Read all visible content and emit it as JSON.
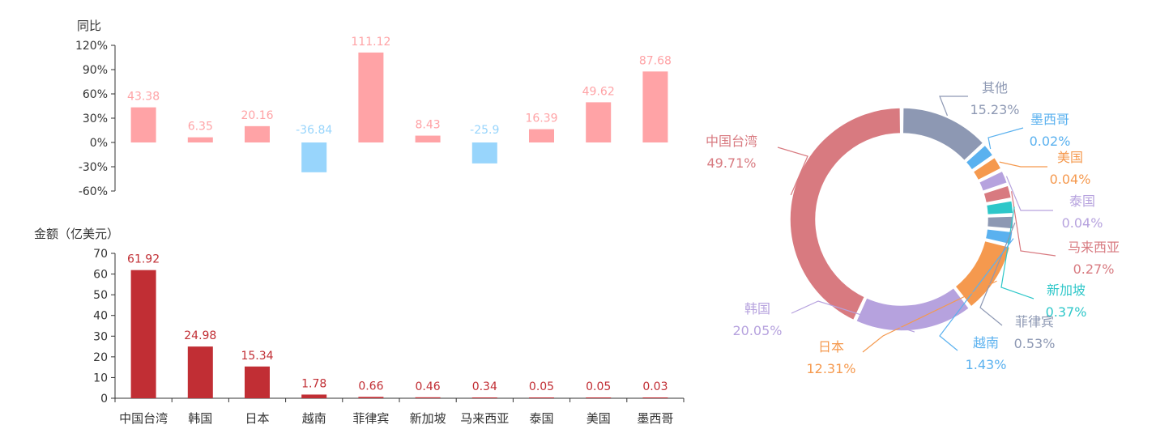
{
  "chart_data": [
    {
      "type": "bar",
      "ylabel": "同比",
      "categories": [
        "中国台湾",
        "韩国",
        "日本",
        "越南",
        "菲律宾",
        "新加坡",
        "马来西亚",
        "泰国",
        "美国",
        "墨西哥"
      ],
      "values": [
        43.38,
        6.35,
        20.16,
        -36.84,
        111.12,
        8.43,
        -25.9,
        16.39,
        49.62,
        87.68
      ],
      "value_labels": [
        "43.38",
        "6.35",
        "20.16",
        "-36.84",
        "111.12",
        "8.43",
        "-25.9",
        "16.39",
        "49.62",
        "87.68"
      ],
      "ylim": [
        -60,
        120
      ],
      "yticks": [
        "120%",
        "90%",
        "60%",
        "30%",
        "0%",
        "-30%",
        "-60%"
      ],
      "colors": {
        "positive": "#ffa3a6",
        "negative": "#98d5fc"
      }
    },
    {
      "type": "bar",
      "ylabel": "金额（亿美元）",
      "categories": [
        "中国台湾",
        "韩国",
        "日本",
        "越南",
        "菲律宾",
        "新加坡",
        "马来西亚",
        "泰国",
        "美国",
        "墨西哥"
      ],
      "values": [
        61.92,
        24.98,
        15.34,
        1.78,
        0.66,
        0.46,
        0.34,
        0.05,
        0.05,
        0.03
      ],
      "value_labels": [
        "61.92",
        "24.98",
        "15.34",
        "1.78",
        "0.66",
        "0.46",
        "0.34",
        "0.05",
        "0.05",
        "0.03"
      ],
      "ylim": [
        0,
        70
      ],
      "yticks": [
        "70",
        "60",
        "50",
        "40",
        "30",
        "20",
        "10",
        "0"
      ],
      "colors": {
        "bar": "#c12e34"
      }
    },
    {
      "type": "pie",
      "slices": [
        {
          "name": "中国台湾",
          "value": 49.71,
          "label": "49.71%",
          "color": "#d87a80"
        },
        {
          "name": "其他",
          "value": 15.23,
          "label": "15.23%",
          "color": "#8d98b3"
        },
        {
          "name": "墨西哥",
          "value": 0.02,
          "label": "0.02%",
          "color": "#5ab1ef"
        },
        {
          "name": "美国",
          "value": 0.04,
          "label": "0.04%",
          "color": "#f5994e"
        },
        {
          "name": "泰国",
          "value": 0.04,
          "label": "0.04%",
          "color": "#b6a2de"
        },
        {
          "name": "马来西亚",
          "value": 0.27,
          "label": "0.27%",
          "color": "#d87a80"
        },
        {
          "name": "新加坡",
          "value": 0.37,
          "label": "0.37%",
          "color": "#2ec7c9"
        },
        {
          "name": "菲律宾",
          "value": 0.53,
          "label": "0.53%",
          "color": "#8d98b3"
        },
        {
          "name": "越南",
          "value": 1.43,
          "label": "1.43%",
          "color": "#5ab1ef"
        },
        {
          "name": "日本",
          "value": 12.31,
          "label": "12.31%",
          "color": "#f5994e"
        },
        {
          "name": "韩国",
          "value": 20.05,
          "label": "20.05%",
          "color": "#b6a2de"
        }
      ]
    }
  ]
}
